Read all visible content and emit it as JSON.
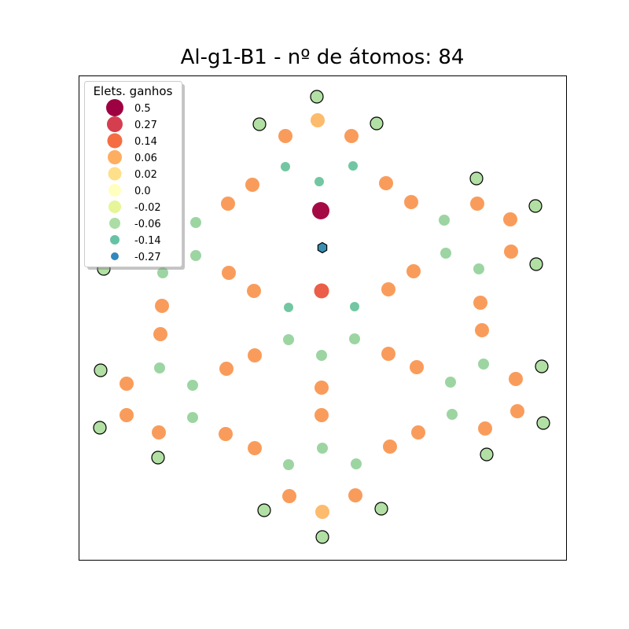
{
  "chart_data": {
    "type": "scatter",
    "title": "Al-g1-B1 - nº de átomos: 84",
    "xlabel": "",
    "ylabel": "",
    "axes_ticks": false,
    "grid": false,
    "legend": {
      "title": "Elets. ganhos",
      "placement": "top-left",
      "entries": [
        {
          "label": "0.5",
          "value": 0.5,
          "color": "#9e0142"
        },
        {
          "label": "0.27",
          "value": 0.27,
          "color": "#d53e4f"
        },
        {
          "label": "0.14",
          "value": 0.14,
          "color": "#f46d43"
        },
        {
          "label": "0.06",
          "value": 0.06,
          "color": "#fdae61"
        },
        {
          "label": "0.02",
          "value": 0.02,
          "color": "#fee08b"
        },
        {
          "label": "0.0",
          "value": 0.0,
          "color": "#ffffbf"
        },
        {
          "label": "-0.02",
          "value": -0.02,
          "color": "#e6f598"
        },
        {
          "label": "-0.06",
          "value": -0.06,
          "color": "#abdda4"
        },
        {
          "label": "-0.14",
          "value": -0.14,
          "color": "#66c2a5"
        },
        {
          "label": "-0.27",
          "value": -0.27,
          "color": "#3288bd"
        }
      ]
    },
    "series": [
      {
        "charge": 0.5,
        "color": "#a50a44",
        "edge": false,
        "marker": "circle",
        "points": [
          [
            408,
            268
          ]
        ]
      },
      {
        "charge": 0.14,
        "color": "#eb5e48",
        "edge": false,
        "marker": "circle",
        "points": [
          [
            409,
            370
          ]
        ]
      },
      {
        "charge": 0.06,
        "color": "#f99c5b",
        "edge": false,
        "marker": "circle",
        "points": [
          [
            363,
            173
          ],
          [
            447,
            173
          ],
          [
            321,
            235
          ],
          [
            491,
            233
          ],
          [
            290,
            259
          ],
          [
            523,
            257
          ],
          [
            607,
            259
          ],
          [
            649,
            279
          ],
          [
            650,
            320
          ],
          [
            291,
            347
          ],
          [
            526,
            345
          ],
          [
            323,
            370
          ],
          [
            494,
            368
          ],
          [
            206,
            389
          ],
          [
            611,
            385
          ],
          [
            204,
            425
          ],
          [
            613,
            420
          ],
          [
            324,
            452
          ],
          [
            494,
            450
          ],
          [
            288,
            469
          ],
          [
            530,
            467
          ],
          [
            161,
            488
          ],
          [
            656,
            482
          ],
          [
            409,
            493
          ],
          [
            161,
            528
          ],
          [
            409,
            528
          ],
          [
            658,
            523
          ],
          [
            287,
            552
          ],
          [
            532,
            550
          ],
          [
            202,
            550
          ],
          [
            617,
            545
          ],
          [
            324,
            570
          ],
          [
            496,
            568
          ],
          [
            368,
            631
          ],
          [
            452,
            630
          ]
        ]
      },
      {
        "charge": 0.06,
        "color": "#fcbb6d",
        "edge": false,
        "marker": "circle",
        "points": [
          [
            404,
            153
          ],
          [
            410,
            651
          ]
        ]
      },
      {
        "charge": -0.06,
        "color": "#9cd5a2",
        "edge": false,
        "marker": "circle",
        "points": [
          [
            249,
            283
          ],
          [
            565,
            280
          ],
          [
            249,
            325
          ],
          [
            567,
            322
          ],
          [
            207,
            347
          ],
          [
            609,
            342
          ],
          [
            367,
            432
          ],
          [
            451,
            431
          ],
          [
            409,
            452
          ],
          [
            203,
            468
          ],
          [
            615,
            463
          ],
          [
            245,
            490
          ],
          [
            573,
            486
          ],
          [
            245,
            531
          ],
          [
            575,
            527
          ],
          [
            410,
            570
          ],
          [
            367,
            591
          ],
          [
            453,
            590
          ]
        ]
      },
      {
        "charge": -0.14,
        "color": "#72c7a2",
        "edge": false,
        "marker": "circle",
        "points": [
          [
            363,
            212
          ],
          [
            449,
            211
          ],
          [
            406,
            231
          ],
          [
            367,
            391
          ],
          [
            451,
            390
          ]
        ]
      },
      {
        "charge": -0.06,
        "color": "#b2e0a4",
        "edge": true,
        "marker": "circle",
        "points": [
          [
            403,
            123
          ],
          [
            330,
            158
          ],
          [
            479,
            157
          ],
          [
            606,
            227
          ],
          [
            681,
            262
          ],
          [
            682,
            336
          ],
          [
            132,
            342
          ],
          [
            128,
            471
          ],
          [
            689,
            466
          ],
          [
            127,
            544
          ],
          [
            691,
            538
          ],
          [
            201,
            582
          ],
          [
            619,
            578
          ],
          [
            336,
            649
          ],
          [
            485,
            647
          ],
          [
            410,
            683
          ]
        ]
      },
      {
        "charge": -0.27,
        "color": "#3a8fb0",
        "edge": true,
        "marker": "hexagon",
        "points": [
          [
            410,
            315
          ]
        ]
      }
    ]
  }
}
